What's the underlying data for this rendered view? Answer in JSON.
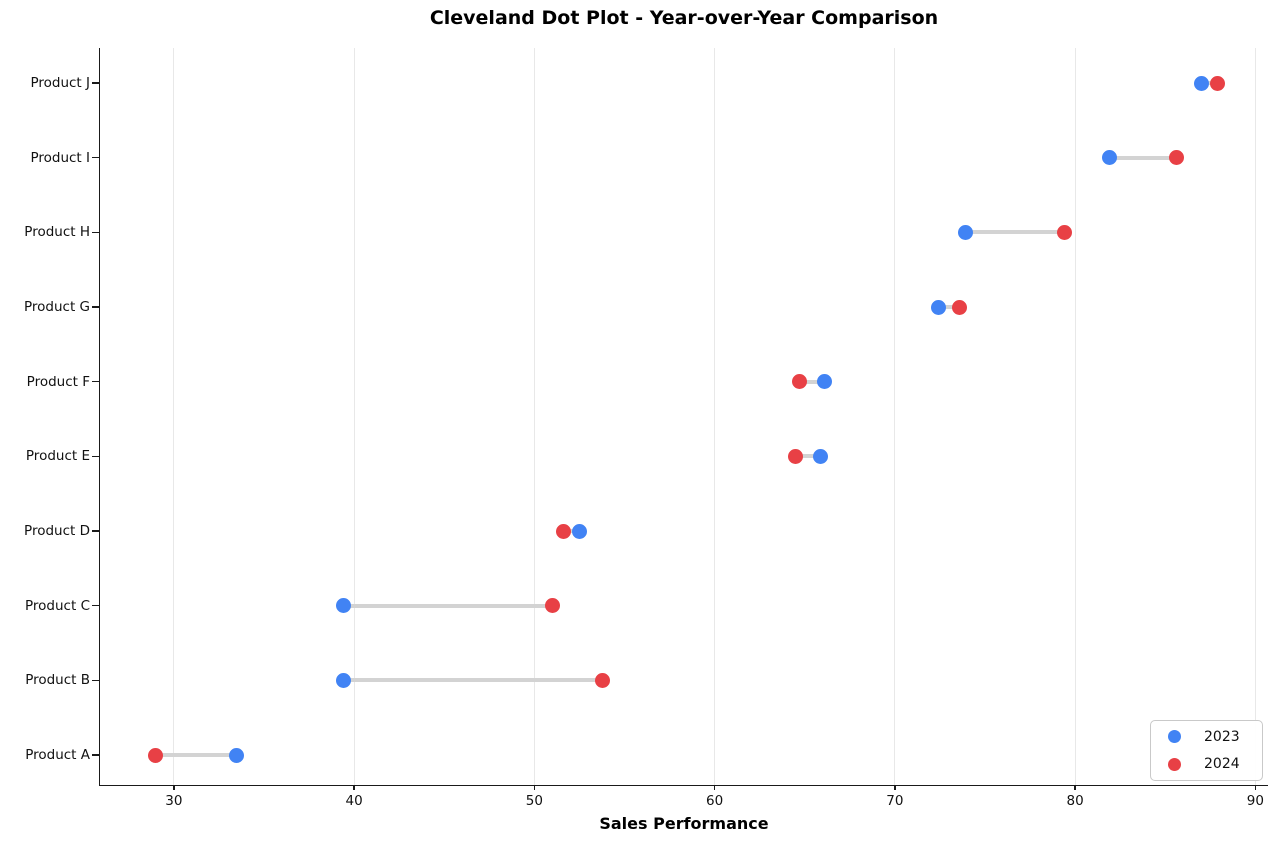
{
  "chart_data": {
    "type": "scatter",
    "subtype": "cleveland-dot-plot",
    "title": "Cleveland Dot Plot - Year-over-Year Comparison",
    "xlabel": "Sales Performance",
    "ylabel": "",
    "categories": [
      "Product A",
      "Product B",
      "Product C",
      "Product D",
      "Product E",
      "Product F",
      "Product G",
      "Product H",
      "Product I",
      "Product J"
    ],
    "series": [
      {
        "name": "2023",
        "color": "#4183F4",
        "values": [
          33.5,
          39.4,
          39.4,
          52.5,
          65.9,
          66.1,
          72.4,
          73.9,
          81.9,
          87.0
        ]
      },
      {
        "name": "2024",
        "color": "#E84045",
        "values": [
          29.0,
          53.8,
          51.0,
          51.6,
          64.5,
          64.7,
          73.6,
          79.4,
          85.6,
          87.9
        ]
      }
    ],
    "xticks": [
      30,
      40,
      50,
      60,
      70,
      80,
      90
    ],
    "xlim": [
      25.9,
      90.7
    ],
    "grid": "vertical-only",
    "grid_color": "#e8e8e8",
    "axis_color": "#1a1a1a",
    "connector_color": "#d3d3d3",
    "legend_position": "lower right",
    "background_color": "#ffffff"
  }
}
